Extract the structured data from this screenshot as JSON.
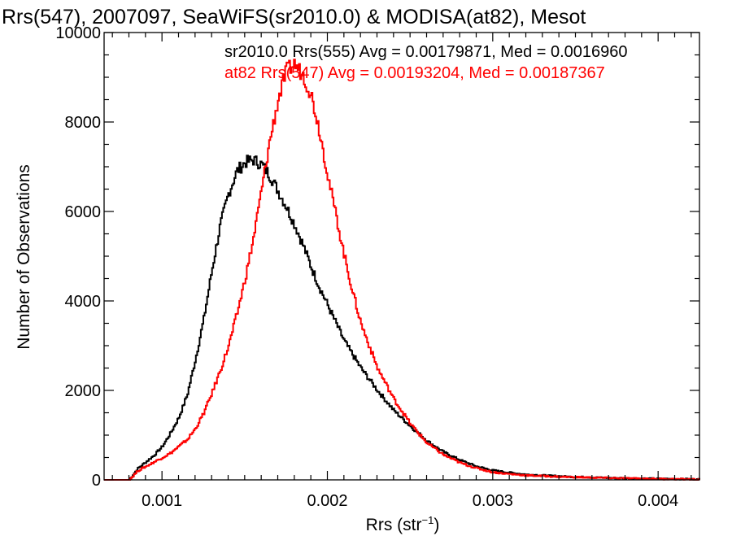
{
  "chart_data": {
    "type": "line",
    "title": "Rrs(547), 2007097, SeaWiFS(sr2010.0) & MODISA(at82), Mesot",
    "xlabel_main": "Rrs (str",
    "xlabel_sup": "−1",
    "xlabel_close": ")",
    "ylabel": "Number of Observations",
    "xlim": [
      0.00065,
      0.00425
    ],
    "ylim": [
      0,
      10000
    ],
    "xticks": [
      0.001,
      0.002,
      0.003,
      0.004
    ],
    "xtick_labels": [
      "0.001",
      "0.002",
      "0.003",
      "0.004"
    ],
    "yticks": [
      0,
      2000,
      4000,
      6000,
      8000,
      10000
    ],
    "ytick_labels": [
      "0",
      "2000",
      "4000",
      "6000",
      "8000",
      "10000"
    ],
    "annotations": [
      {
        "text": "sr2010.0 Rrs(555) Avg = 0.00179871, Med = 0.0016960",
        "color": "#000000"
      },
      {
        "text": "at82 Rrs(547) Avg = 0.00193204, Med = 0.00187367",
        "color": "#ff0000"
      }
    ],
    "series": [
      {
        "name": "sr2010.0 Rrs(555)",
        "color": "#000000",
        "x": [
          0.00065,
          0.0008,
          0.00085,
          0.0009,
          0.00095,
          0.001,
          0.00105,
          0.0011,
          0.00115,
          0.0012,
          0.00125,
          0.0013,
          0.00135,
          0.0014,
          0.00145,
          0.0015,
          0.00155,
          0.0016,
          0.00165,
          0.0017,
          0.00175,
          0.0018,
          0.00185,
          0.0019,
          0.00195,
          0.002,
          0.00205,
          0.0021,
          0.00215,
          0.0022,
          0.00225,
          0.0023,
          0.0024,
          0.0025,
          0.0026,
          0.0027,
          0.0028,
          0.0029,
          0.003,
          0.0031,
          0.0032,
          0.0033,
          0.0034,
          0.0035,
          0.0036,
          0.0037,
          0.0038,
          0.0039,
          0.004,
          0.0041,
          0.0042,
          0.00425
        ],
        "y": [
          0,
          0,
          250,
          400,
          550,
          750,
          1050,
          1400,
          1900,
          2700,
          3600,
          4700,
          5700,
          6400,
          6900,
          7100,
          7150,
          7050,
          6800,
          6450,
          6100,
          5700,
          5250,
          4750,
          4300,
          3900,
          3500,
          3100,
          2800,
          2500,
          2250,
          2000,
          1550,
          1200,
          870,
          620,
          440,
          300,
          210,
          160,
          120,
          100,
          80,
          65,
          55,
          45,
          38,
          30,
          25,
          20,
          15,
          10
        ]
      },
      {
        "name": "at82 Rrs(547)",
        "color": "#ff0000",
        "x": [
          0.00065,
          0.0008,
          0.00085,
          0.0009,
          0.00095,
          0.001,
          0.00105,
          0.0011,
          0.00115,
          0.0012,
          0.00125,
          0.0013,
          0.00135,
          0.0014,
          0.00145,
          0.0015,
          0.00155,
          0.0016,
          0.00165,
          0.0017,
          0.00175,
          0.0018,
          0.00185,
          0.0019,
          0.00195,
          0.002,
          0.00205,
          0.0021,
          0.00215,
          0.0022,
          0.00225,
          0.0023,
          0.0024,
          0.0025,
          0.0026,
          0.0027,
          0.0028,
          0.0029,
          0.003,
          0.0031,
          0.0032,
          0.0033,
          0.0034,
          0.0035,
          0.0036,
          0.0037,
          0.0038,
          0.0039,
          0.004,
          0.0041,
          0.0042,
          0.00425
        ],
        "y": [
          0,
          0,
          200,
          300,
          400,
          500,
          600,
          750,
          900,
          1150,
          1500,
          1950,
          2450,
          3000,
          3700,
          4500,
          5400,
          6500,
          7600,
          8500,
          9150,
          9300,
          9050,
          8600,
          7800,
          6800,
          5900,
          5000,
          4200,
          3500,
          3000,
          2500,
          1800,
          1250,
          820,
          560,
          380,
          260,
          170,
          130,
          100,
          85,
          70,
          60,
          50,
          42,
          35,
          28,
          22,
          17,
          12,
          8
        ]
      }
    ]
  }
}
